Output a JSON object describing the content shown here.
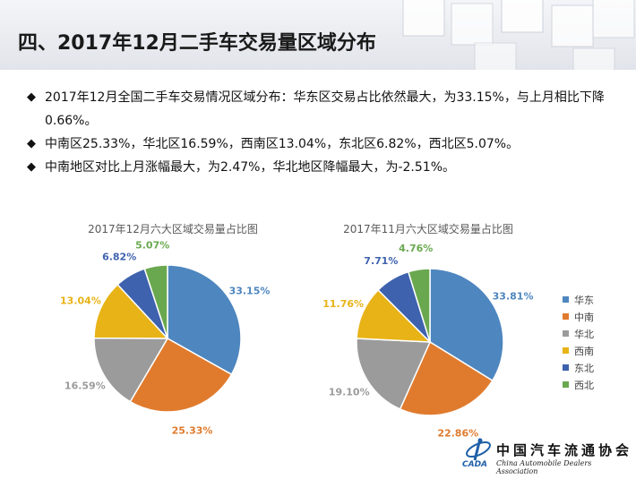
{
  "header": {
    "title": "四、2017年12月二手车交易量区域分布"
  },
  "bullets": [
    {
      "symbol": "◆",
      "text": "2017年12月全国二手车交易情况区域分布：华东区交易占比依然最大，为33.15%，与上月相比下降0.66%。"
    },
    {
      "symbol": "◆",
      "text": "中南区25.33%，华北区16.59%，西南区13.04%，东北区6.82%，西北区5.07%。"
    },
    {
      "symbol": "◆",
      "text": "中南地区对比上月涨幅最大，为2.47%，华北地区降幅最大，为-2.51%。"
    }
  ],
  "colors": {
    "华东": "#4e86bf",
    "中南": "#e07b2e",
    "华北": "#9b9b9b",
    "西南": "#e8b316",
    "东北": "#3e62ad",
    "西北": "#6aa84f"
  },
  "legend": {
    "position": "right",
    "items": [
      {
        "name": "华东",
        "icon": "square-swatch"
      },
      {
        "name": "中南",
        "icon": "square-swatch"
      },
      {
        "name": "华北",
        "icon": "square-swatch"
      },
      {
        "name": "西南",
        "icon": "square-swatch"
      },
      {
        "name": "东北",
        "icon": "square-swatch"
      },
      {
        "name": "西北",
        "icon": "square-swatch"
      }
    ]
  },
  "chart_data": [
    {
      "type": "pie",
      "title": "2017年12月六大区域交易量占比图",
      "categories": [
        "华东",
        "中南",
        "华北",
        "西南",
        "东北",
        "西北"
      ],
      "values": [
        33.15,
        25.33,
        16.59,
        13.04,
        6.82,
        5.07
      ],
      "labels": [
        "33.15%",
        "25.33%",
        "16.59%",
        "13.04%",
        "6.82%",
        "5.07%"
      ]
    },
    {
      "type": "pie",
      "title": "2017年11月六大区域交易量占比图",
      "categories": [
        "华东",
        "中南",
        "华北",
        "西南",
        "东北",
        "西北"
      ],
      "values": [
        33.81,
        22.86,
        19.1,
        11.76,
        7.71,
        4.76
      ],
      "labels": [
        "33.81%",
        "22.86%",
        "19.10%",
        "11.76%",
        "7.71%",
        "4.76%"
      ]
    }
  ],
  "logo": {
    "name_cn": "中国汽车流通协会",
    "name_en": "China Automobile Dealers Association",
    "abbr": "CADA",
    "icon": "cada-emblem-icon"
  }
}
